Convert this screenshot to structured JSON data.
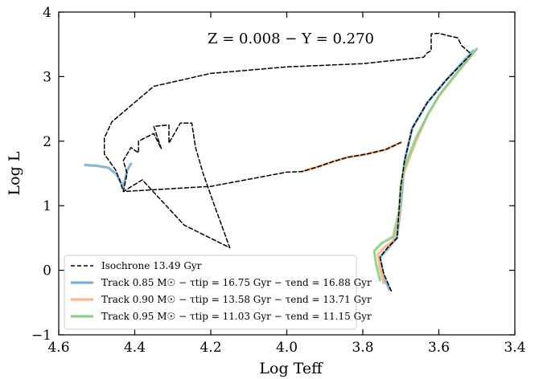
{
  "chart_data": {
    "type": "line",
    "xlabel": "Log Teff",
    "ylabel": "Log L",
    "xlim": [
      4.6,
      3.4
    ],
    "ylim": [
      -1,
      4
    ],
    "x_reversed": true,
    "x_ticks": [
      "4.6",
      "4.4",
      "4.2",
      "4.0",
      "3.8",
      "3.6",
      "3.4"
    ],
    "y_ticks": [
      "4",
      "3",
      "2",
      "1",
      "0",
      "−1"
    ],
    "annotation": "Z = 0.008 − Y = 0.270",
    "legend_position": "lower-left",
    "legend": [
      {
        "label": "Isochrone 13.49 Gyr"
      },
      {
        "label": "Track 0.85 M☉ − τtip = 16.75 Gyr − τend = 16.88 Gyr"
      },
      {
        "label": "Track 0.90 M☉ − τtip = 13.58 Gyr − τend = 13.71 Gyr"
      },
      {
        "label": "Track 0.95 M☉ − τtip = 11.03 Gyr − τend = 11.15 Gyr"
      }
    ],
    "colors": {
      "isochrone": "#000000",
      "track_085": "#7eb0d5",
      "track_090": "#ffb482",
      "track_095": "#8dd08a"
    },
    "series": [
      {
        "name": "Track 0.85 M☉",
        "color": "#7eb0d5",
        "points": [
          [
            3.73,
            -0.3
          ],
          [
            3.745,
            -0.1
          ],
          [
            3.755,
            0.2
          ],
          [
            3.735,
            0.33
          ],
          [
            3.71,
            0.5
          ],
          [
            3.7,
            1.0
          ],
          [
            3.69,
            1.7
          ],
          [
            3.67,
            2.2
          ],
          [
            3.63,
            2.6
          ],
          [
            3.58,
            2.95
          ],
          [
            3.51,
            3.4
          ]
        ]
      },
      {
        "name": "Track 0.90 M☉",
        "color": "#ffb482",
        "points": [
          [
            3.745,
            -0.2
          ],
          [
            3.755,
            0.05
          ],
          [
            3.76,
            0.25
          ],
          [
            3.74,
            0.37
          ],
          [
            3.72,
            0.45
          ],
          [
            3.705,
            0.8
          ],
          [
            3.7,
            1.3
          ],
          [
            3.69,
            1.55
          ],
          [
            3.68,
            1.7
          ],
          [
            3.66,
            2.0
          ],
          [
            3.63,
            2.4
          ],
          [
            3.6,
            2.7
          ],
          [
            3.56,
            3.0
          ],
          [
            3.505,
            3.4
          ]
        ]
      },
      {
        "name": "Track 0.95 M☉",
        "color": "#8dd08a",
        "points": [
          [
            3.755,
            -0.15
          ],
          [
            3.765,
            0.1
          ],
          [
            3.77,
            0.3
          ],
          [
            3.75,
            0.42
          ],
          [
            3.72,
            0.52
          ],
          [
            3.705,
            0.9
          ],
          [
            3.7,
            1.3
          ],
          [
            3.69,
            1.6
          ],
          [
            3.68,
            1.75
          ],
          [
            3.66,
            2.05
          ],
          [
            3.63,
            2.4
          ],
          [
            3.6,
            2.7
          ],
          [
            3.56,
            3.0
          ],
          [
            3.5,
            3.43
          ]
        ]
      },
      {
        "name": "Track 0.90 M☉ horizontal branch",
        "color": "#ffb482",
        "points": [
          [
            3.96,
            1.53
          ],
          [
            3.92,
            1.6
          ],
          [
            3.88,
            1.68
          ],
          [
            3.84,
            1.75
          ],
          [
            3.79,
            1.8
          ],
          [
            3.74,
            1.87
          ],
          [
            3.7,
            1.98
          ]
        ]
      },
      {
        "name": "Track 0.85 M☉ horizontal branch",
        "color": "#7eb0d5",
        "points": [
          [
            4.53,
            1.63
          ],
          [
            4.5,
            1.62
          ],
          [
            4.47,
            1.59
          ],
          [
            4.45,
            1.5
          ],
          [
            4.44,
            1.4
          ],
          [
            4.43,
            1.3
          ],
          [
            4.42,
            1.55
          ],
          [
            4.41,
            1.65
          ],
          [
            4.42,
            1.55
          ],
          [
            4.43,
            1.3
          ]
        ]
      },
      {
        "name": "Isochrone 13.49 Gyr",
        "color": "#000000",
        "points": [
          [
            3.725,
            -0.32
          ],
          [
            3.745,
            -0.05
          ],
          [
            3.755,
            0.2
          ],
          [
            3.735,
            0.35
          ],
          [
            3.71,
            0.5
          ],
          [
            3.705,
            0.9
          ],
          [
            3.7,
            1.3
          ],
          [
            3.69,
            1.7
          ],
          [
            3.67,
            2.2
          ],
          [
            3.63,
            2.6
          ],
          [
            3.58,
            2.95
          ],
          [
            3.515,
            3.35
          ],
          [
            3.54,
            3.48
          ],
          [
            3.55,
            3.6
          ],
          [
            3.58,
            3.64
          ],
          [
            3.6,
            3.67
          ],
          [
            3.62,
            3.66
          ],
          [
            3.62,
            3.4
          ],
          [
            3.63,
            3.37
          ],
          [
            3.64,
            3.3
          ],
          [
            3.8,
            3.2
          ],
          [
            4.0,
            3.15
          ],
          [
            4.2,
            3.05
          ],
          [
            4.35,
            2.85
          ],
          [
            4.46,
            2.3
          ],
          [
            4.48,
            2.05
          ],
          [
            4.48,
            1.8
          ],
          [
            4.45,
            1.55
          ],
          [
            4.44,
            1.4
          ],
          [
            4.43,
            1.22
          ],
          [
            4.42,
            1.5
          ],
          [
            4.43,
            1.7
          ],
          [
            4.41,
            1.9
          ],
          [
            4.39,
            1.82
          ],
          [
            4.39,
            2.0
          ],
          [
            4.35,
            2.12
          ],
          [
            4.33,
            1.88
          ],
          [
            4.35,
            2.23
          ],
          [
            4.31,
            2.25
          ],
          [
            4.31,
            1.97
          ],
          [
            4.28,
            2.28
          ],
          [
            4.25,
            2.28
          ],
          [
            4.24,
            1.9
          ],
          [
            4.22,
            1.5
          ],
          [
            4.19,
            1.0
          ],
          [
            4.15,
            0.35
          ],
          [
            4.27,
            0.7
          ],
          [
            4.38,
            1.4
          ],
          [
            4.43,
            1.22
          ],
          [
            4.2,
            1.3
          ],
          [
            4.0,
            1.52
          ],
          [
            3.96,
            1.53
          ],
          [
            3.92,
            1.6
          ],
          [
            3.88,
            1.68
          ],
          [
            3.84,
            1.75
          ],
          [
            3.79,
            1.8
          ],
          [
            3.74,
            1.87
          ],
          [
            3.7,
            1.98
          ]
        ]
      }
    ]
  }
}
